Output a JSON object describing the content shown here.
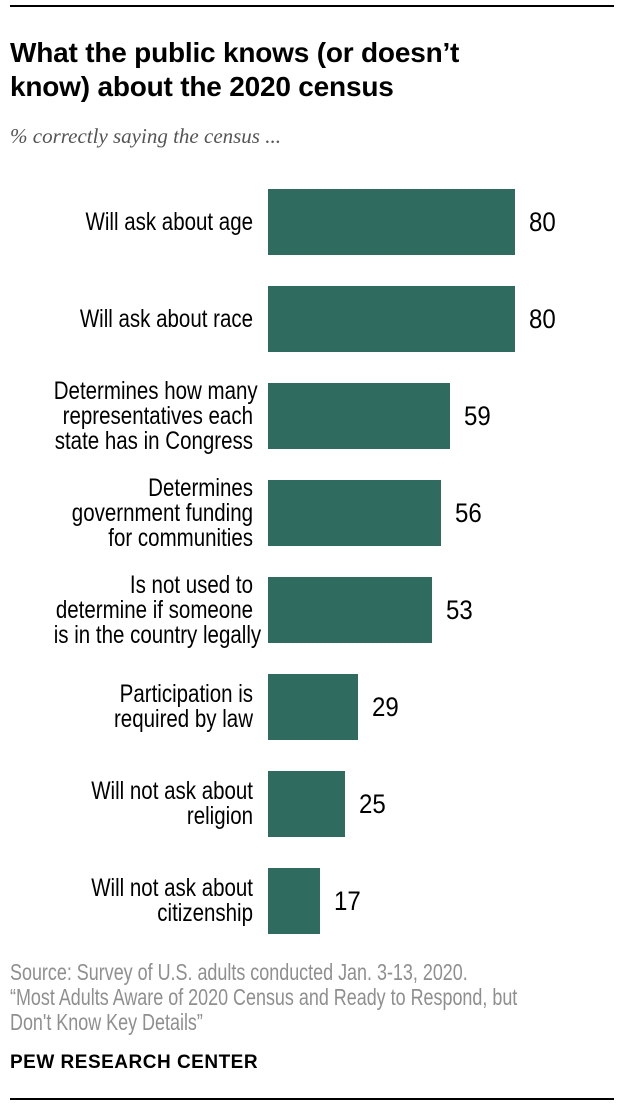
{
  "chart_data": {
    "type": "bar",
    "orientation": "horizontal",
    "title": "What the public knows (or doesn’t\nknow) about the 2020 census",
    "subtitle": "% correctly saying the census ...",
    "categories": [
      "Will ask about age",
      "Will ask about race",
      "Determines how many\nrepresentatives each\nstate has in Congress",
      "Determines\ngovernment funding\nfor communities",
      "Is not used to\ndetermine if someone\nis in the country legally",
      "Participation is\nrequired by law",
      "Will not ask about\nreligion",
      "Will not ask about\ncitizenship"
    ],
    "values": [
      80,
      80,
      59,
      56,
      53,
      29,
      25,
      17
    ],
    "value_labels_shown": true,
    "grid": false,
    "legend": false,
    "bar_color": "#2F6B5E",
    "value_label_color": "#000000",
    "category_label_color": "#000000"
  },
  "colors": {
    "title": "#000000",
    "subtitle_gray": "#555555",
    "source_gray": "#8F8F8F",
    "rule": "#000000",
    "background": "#FFFFFF"
  },
  "footer": {
    "source": "Source: Survey of U.S. adults conducted Jan. 3-13, 2020.\n“Most Adults Aware of 2020 Census and Ready to Respond, but\nDon't Know Key Details”",
    "brand": "PEW RESEARCH CENTER"
  }
}
